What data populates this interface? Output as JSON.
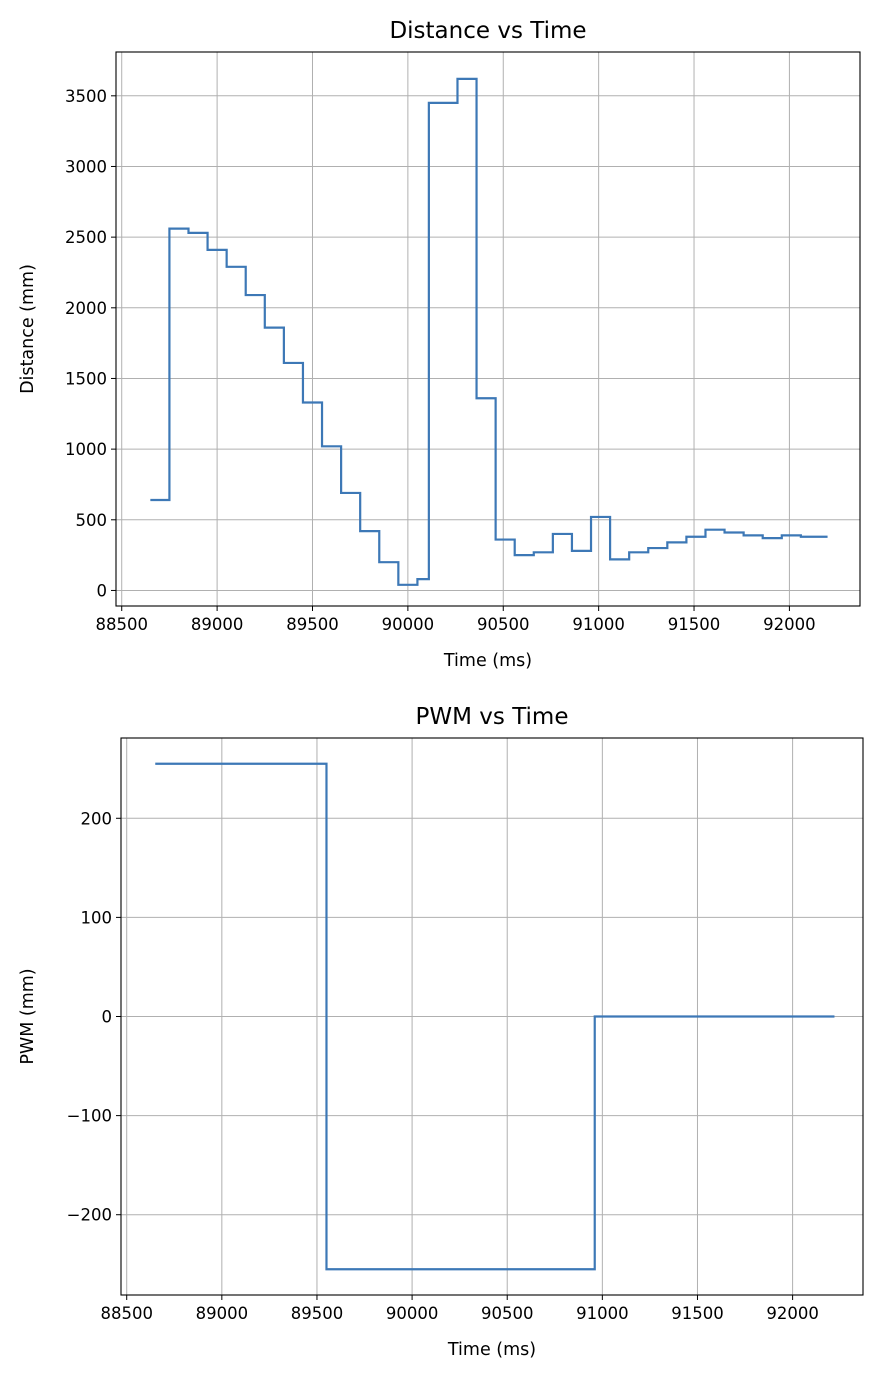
{
  "chart_data": [
    {
      "type": "line",
      "step": "post",
      "title": "Distance vs Time",
      "xlabel": "Time (ms)",
      "ylabel": "Distance (mm)",
      "xlim": [
        88470,
        92370
      ],
      "ylim": [
        -110,
        3810
      ],
      "xticks": [
        88500,
        89000,
        89500,
        90000,
        90500,
        91000,
        91500,
        92000
      ],
      "yticks": [
        0,
        500,
        1000,
        1500,
        2000,
        2500,
        3000,
        3500
      ],
      "grid": true,
      "color": "#3d78b6",
      "x": [
        88650,
        88750,
        88850,
        88950,
        89050,
        89150,
        89250,
        89350,
        89450,
        89550,
        89650,
        89750,
        89850,
        89950,
        90050,
        90110,
        90260,
        90360,
        90460,
        90560,
        90660,
        90760,
        90860,
        90960,
        91060,
        91160,
        91260,
        91360,
        91460,
        91560,
        91660,
        91760,
        91860,
        91960,
        92060,
        92200
      ],
      "y": [
        640,
        2560,
        2530,
        2410,
        2290,
        2090,
        1860,
        1610,
        1330,
        1020,
        690,
        420,
        200,
        40,
        80,
        3450,
        3620,
        1360,
        360,
        250,
        270,
        400,
        280,
        520,
        220,
        270,
        300,
        340,
        380,
        430,
        410,
        390,
        370,
        390,
        380,
        380
      ]
    },
    {
      "type": "line",
      "step": "post",
      "title": "PWM vs Time",
      "xlabel": "Time (ms)",
      "ylabel": "PWM (mm)",
      "xlim": [
        88470,
        92370
      ],
      "ylim": [
        -281,
        281
      ],
      "xticks": [
        88500,
        89000,
        89500,
        90000,
        90500,
        91000,
        91500,
        92000
      ],
      "yticks": [
        -200,
        -100,
        0,
        100,
        200
      ],
      "ytick_labels": [
        "−200",
        "−100",
        "0",
        "100",
        "200"
      ],
      "grid": true,
      "color": "#3d78b6",
      "x": [
        88650,
        89550,
        90960,
        92220
      ],
      "y": [
        255,
        -255,
        0,
        0
      ]
    }
  ]
}
